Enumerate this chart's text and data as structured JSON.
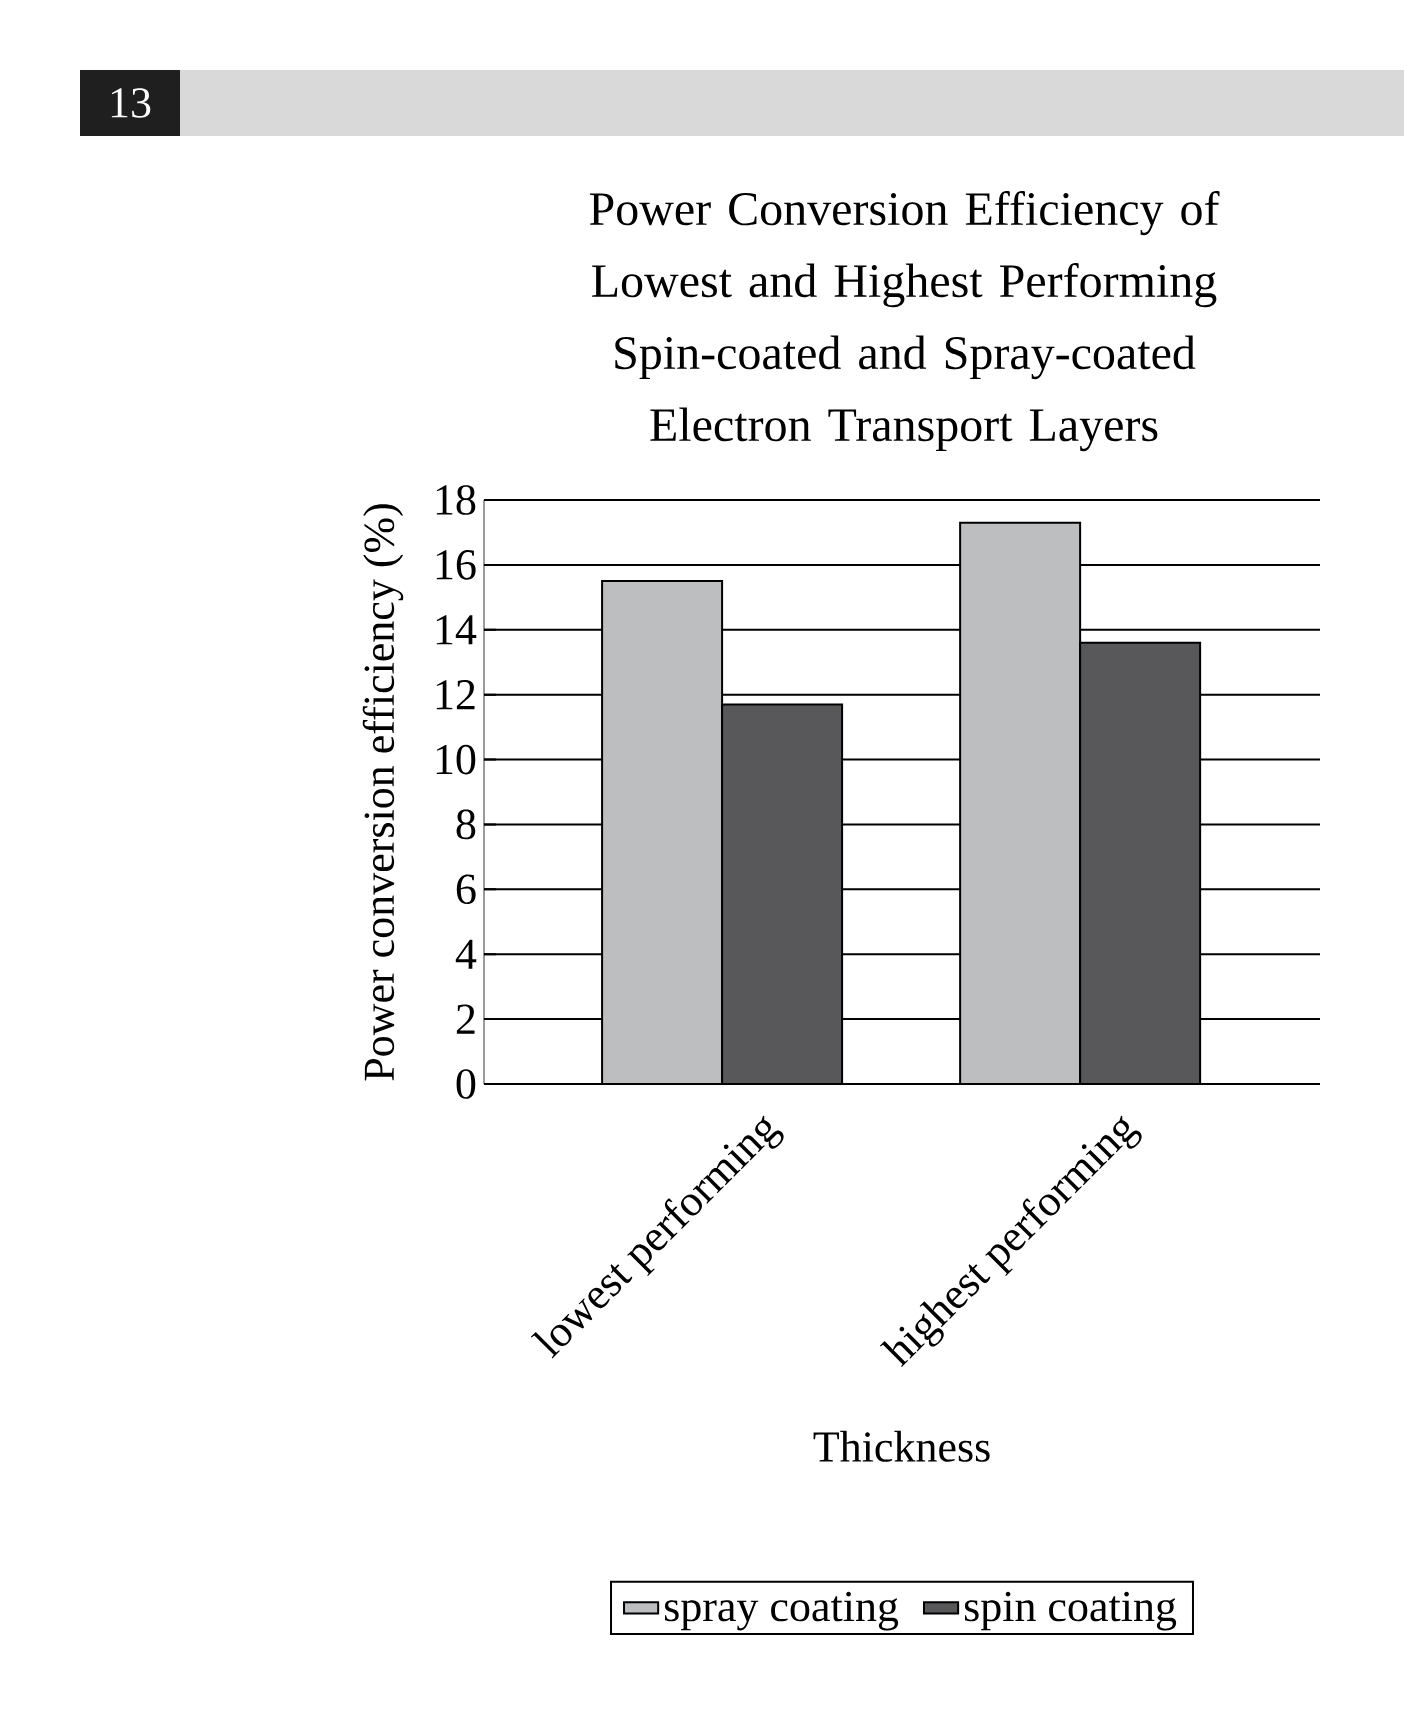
{
  "chart_data": {
    "type": "bar",
    "title": "Power Conversion Efficiency of Lowest and Highest Performing Spin-coated and Spray-coated Electron Transport Layers",
    "xlabel": "Thickness",
    "ylabel": "Power conversion efficiency (%)",
    "categories": [
      "lowest performing",
      "highest performing"
    ],
    "series": [
      {
        "name": "spray coating",
        "color": "#bdbec0",
        "values": [
          15.5,
          17.3
        ]
      },
      {
        "name": "spin coating",
        "color": "#58585a",
        "values": [
          11.7,
          13.6
        ]
      }
    ],
    "ylim": [
      0,
      18
    ],
    "yticks": [
      0,
      2,
      4,
      6,
      8,
      10,
      12,
      14,
      16,
      18
    ],
    "grid": "y",
    "legend": "bottom",
    "annotations": [
      "13"
    ]
  }
}
